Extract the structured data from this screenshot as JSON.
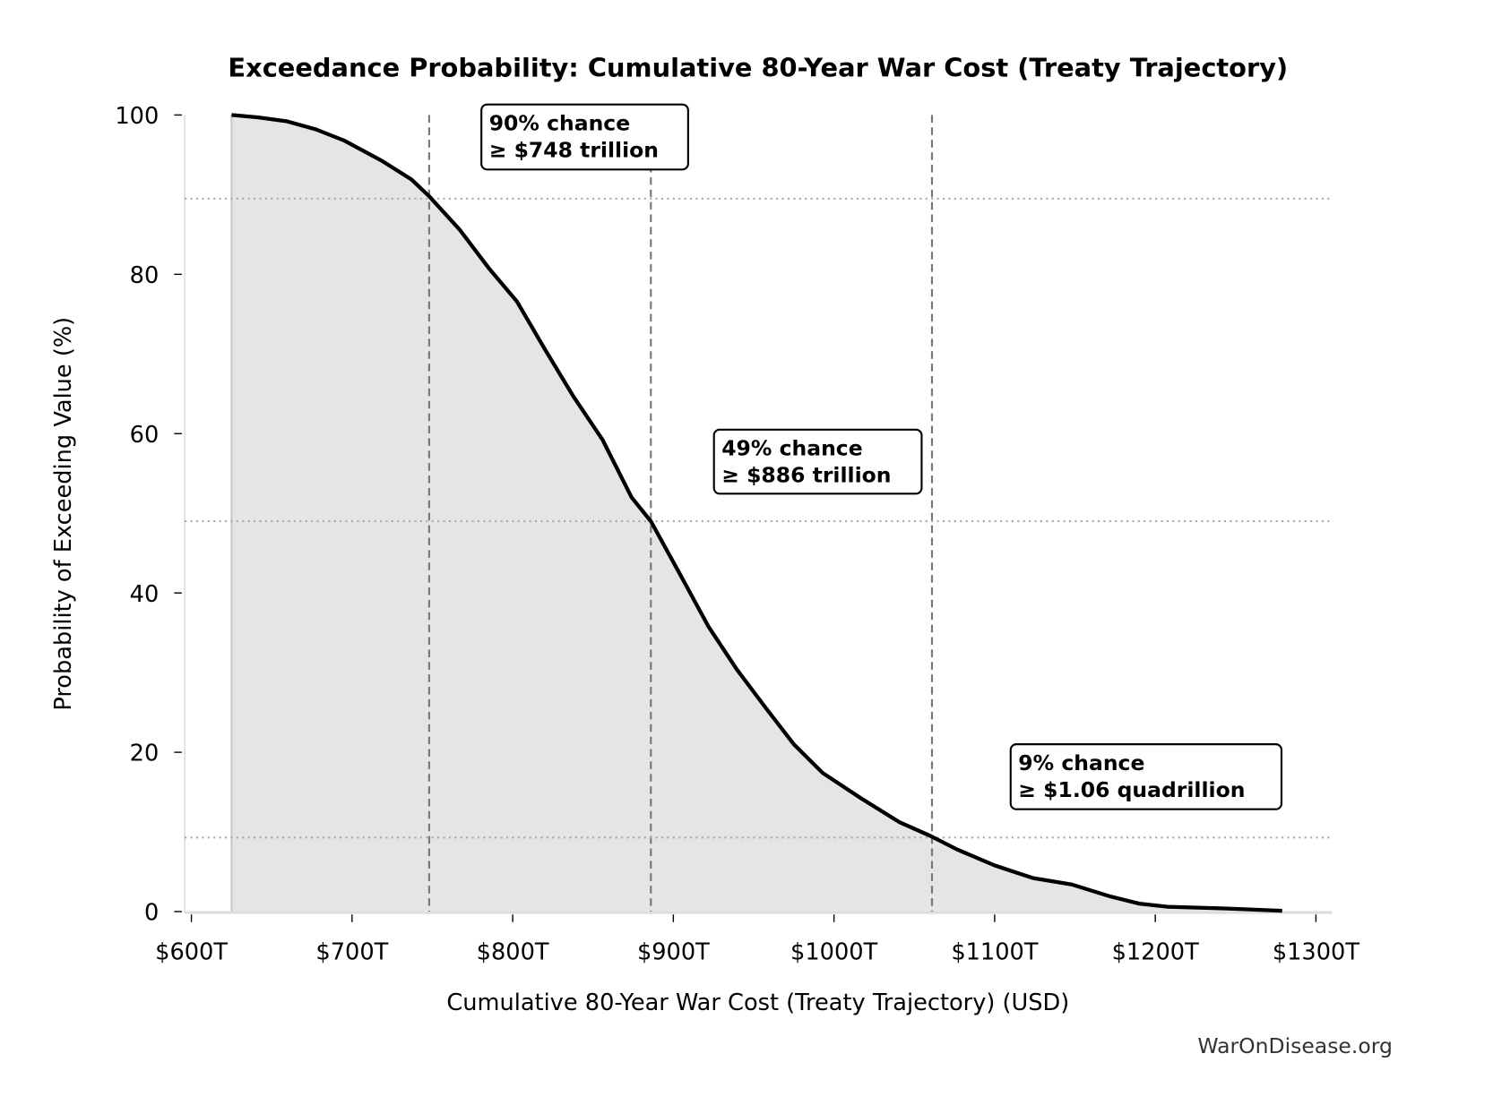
{
  "chart_data": {
    "type": "area",
    "title": "Exceedance Probability: Cumulative 80-Year War Cost (Treaty Trajectory)",
    "xlabel": "Cumulative 80-Year War Cost (Treaty Trajectory) (USD)",
    "ylabel": "Probability of Exceeding Value (%)",
    "xlim": [
      598,
      1310
    ],
    "ylim": [
      0,
      100
    ],
    "x_ticks": [
      600,
      700,
      800,
      900,
      1000,
      1100,
      1200,
      1300
    ],
    "x_tick_labels": [
      "$600T",
      "$700T",
      "$800T",
      "$900T",
      "$1000T",
      "$1100T",
      "$1200T",
      "$1300T"
    ],
    "y_ticks": [
      0,
      20,
      40,
      60,
      80,
      100
    ],
    "y_tick_labels": [
      "0",
      "20",
      "40",
      "60",
      "80",
      "100"
    ],
    "grid": false,
    "colors": {
      "line": "#000000",
      "fill": "#e5e5e5",
      "reference": "#777777"
    },
    "series": [
      {
        "x": [
          625,
          641.7,
          659.6,
          677.4,
          695,
          719,
          737,
          748,
          767,
          785,
          802.6,
          820,
          838,
          856,
          874,
          886,
          904,
          921.8,
          939.5,
          957.4,
          975,
          993,
          1017,
          1041,
          1060,
          1076.6,
          1100,
          1124,
          1148,
          1172,
          1190,
          1207.7,
          1243,
          1279
        ],
        "y": [
          100,
          99.7,
          99.2,
          98.2,
          96.8,
          94.2,
          91.9,
          89.8,
          85.6,
          80.8,
          76.6,
          70.6,
          64.6,
          59.2,
          52,
          49,
          42.4,
          35.8,
          30.4,
          25.6,
          21,
          17.4,
          14.2,
          11.2,
          9.5,
          7.8,
          5.8,
          4.2,
          3.4,
          1.9,
          1.0,
          0.6,
          0.4,
          0.1
        ]
      }
    ],
    "reference_lines": [
      {
        "x": 748,
        "y": 89.5,
        "annotation": [
          "90% chance",
          "≥ $748 trillion"
        ]
      },
      {
        "x": 886,
        "y": 49,
        "annotation": [
          "49% chance",
          "≥ $886 trillion"
        ]
      },
      {
        "x": 1061,
        "y": 9.3,
        "annotation": [
          "9% chance",
          "≥ $1.06 quadrillion"
        ]
      }
    ],
    "watermark": "WarOnDisease.org"
  }
}
